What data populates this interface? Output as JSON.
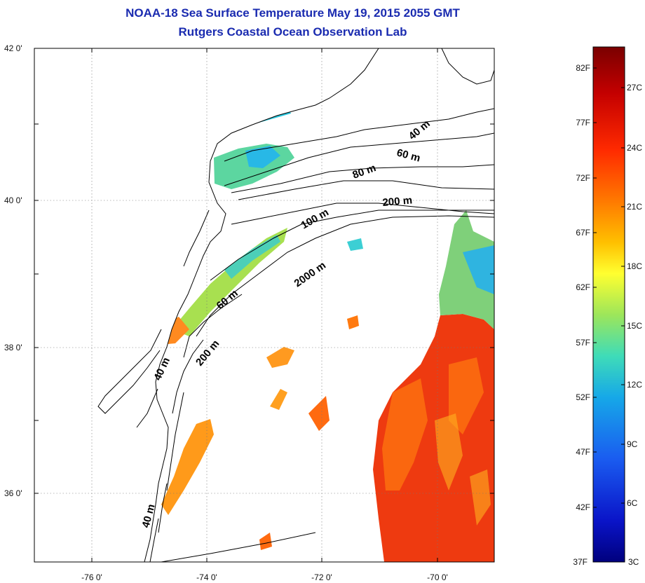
{
  "header": {
    "title": "NOAA-18 Sea Surface Temperature May 19, 2015 2055 GMT",
    "subtitle": "Rutgers Coastal Ocean Observation Lab"
  },
  "map": {
    "lat_labels": [
      "42 0'",
      "40 0'",
      "38 0'",
      "36 0'"
    ],
    "lon_labels": [
      "-76 0'",
      "-74 0'",
      "-72 0'",
      "-70 0'"
    ],
    "contour_labels": [
      "40 m",
      "60 m",
      "80 m",
      "200 m",
      "100 m",
      "2000 m",
      "60 m",
      "200 m",
      "40 m",
      "40 m"
    ]
  },
  "colorbar": {
    "fahrenheit_labels": [
      "82F",
      "77F",
      "72F",
      "67F",
      "62F",
      "57F",
      "52F",
      "47F",
      "42F",
      "37F"
    ],
    "celsius_labels": [
      "27C",
      "24C",
      "21C",
      "18C",
      "15C",
      "12C",
      "9C",
      "6C",
      "3C"
    ],
    "colors": [
      "#7a0000",
      "#c40000",
      "#ff2a00",
      "#ff7a00",
      "#ffc000",
      "#ffff30",
      "#9de65a",
      "#3fdcb8",
      "#16a8e8",
      "#1a5cf0",
      "#0a14c8",
      "#00007e"
    ]
  }
}
